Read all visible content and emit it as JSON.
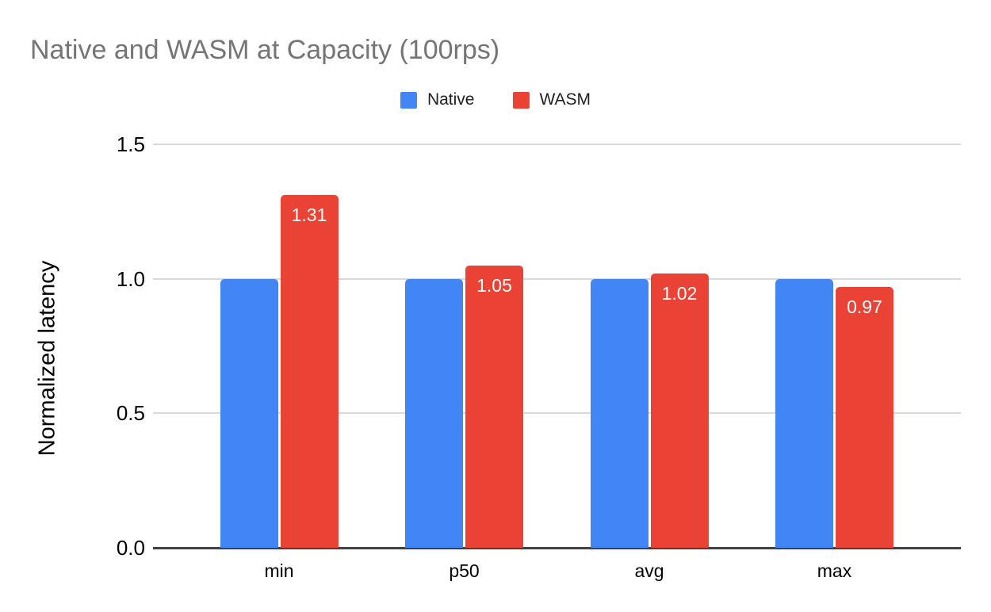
{
  "chart_data": {
    "type": "bar",
    "title": "Native and WASM at Capacity (100rps)",
    "ylabel": "Normalized latency",
    "xlabel": "",
    "categories": [
      "min",
      "p50",
      "avg",
      "max"
    ],
    "series": [
      {
        "name": "Native",
        "color": "#4285F4",
        "values": [
          1.0,
          1.0,
          1.0,
          1.0
        ],
        "labels": [
          "",
          "",
          "",
          ""
        ]
      },
      {
        "name": "WASM",
        "color": "#EA4335",
        "values": [
          1.31,
          1.05,
          1.02,
          0.97
        ],
        "labels": [
          "1.31",
          "1.05",
          "1.02",
          "0.97"
        ]
      }
    ],
    "ylim": [
      0,
      1.5
    ],
    "yticks": [
      "0.0",
      "0.5",
      "1.0",
      "1.5"
    ],
    "grid": true,
    "legend_position": "top",
    "title_color": "#757575",
    "label_text_color": "#ffffff"
  }
}
